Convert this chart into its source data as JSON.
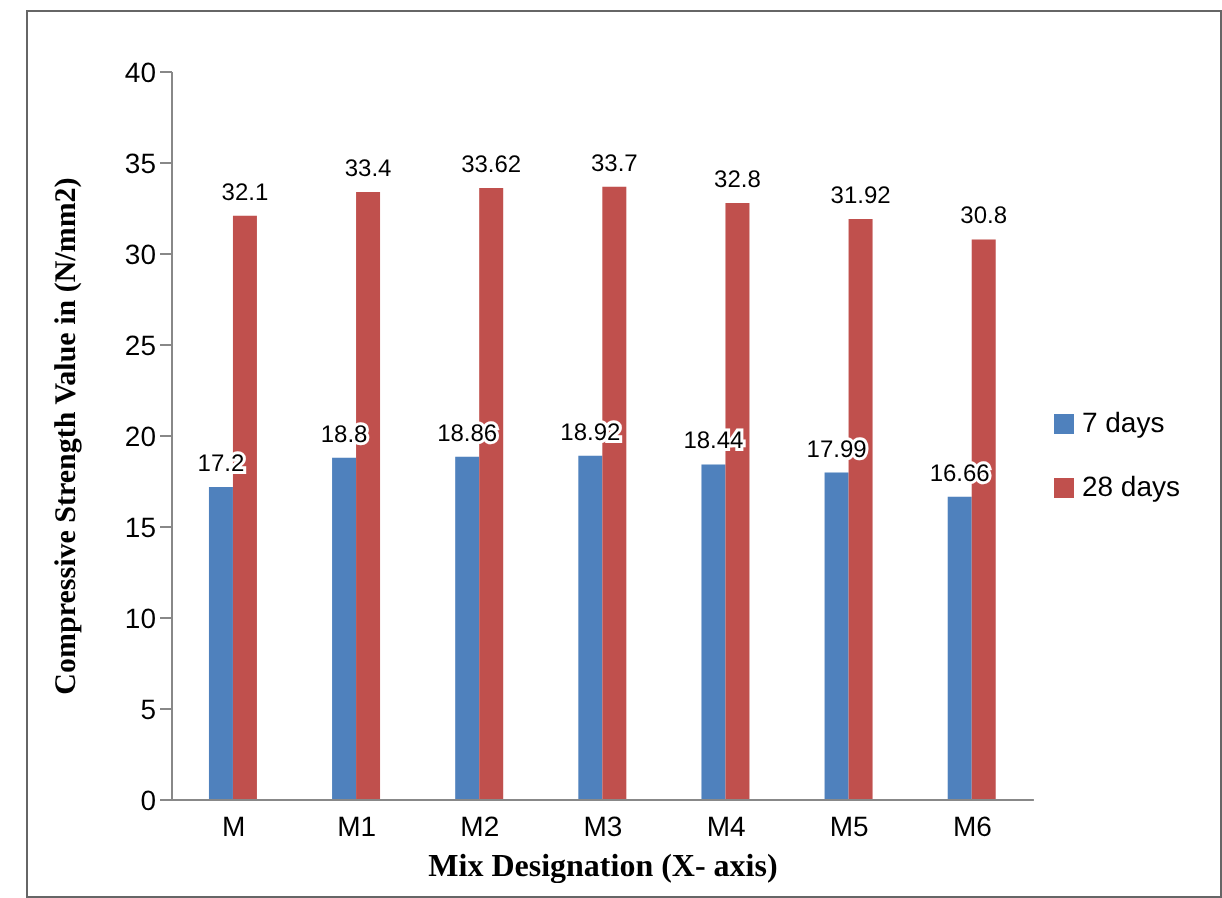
{
  "chart_data": {
    "type": "bar",
    "xlabel": "Mix Designation (X- axis)",
    "ylabel": "Compressive Strength Value in (N/mm2)",
    "categories": [
      "M",
      "M1",
      "M2",
      "M3",
      "M4",
      "M5",
      "M6"
    ],
    "series": [
      {
        "name": "7 days",
        "color": "#4f81bd",
        "values": [
          17.2,
          18.8,
          18.86,
          18.92,
          18.44,
          17.99,
          16.66
        ]
      },
      {
        "name": "28 days",
        "color": "#c0504d",
        "values": [
          32.1,
          33.4,
          33.62,
          33.7,
          32.8,
          31.92,
          30.8
        ]
      }
    ],
    "ylim": [
      0,
      40
    ],
    "yticks": [
      0,
      5,
      10,
      15,
      20,
      25,
      30,
      35,
      40
    ],
    "grid": false,
    "legend": "right",
    "data_labels": true
  }
}
